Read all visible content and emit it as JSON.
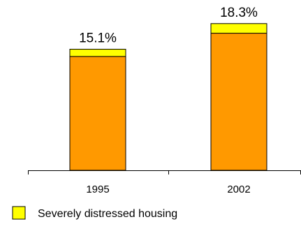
{
  "chart_data": {
    "type": "bar",
    "stacked": true,
    "categories": [
      "1995",
      "2002"
    ],
    "series": [
      {
        "name": "",
        "values": [
          14.2,
          17.1
        ],
        "color": "#FF9900"
      },
      {
        "name": "Severely distressed housing",
        "values": [
          0.9,
          1.2
        ],
        "color": "#FFFF00"
      }
    ],
    "data_labels": [
      "15.1%",
      "18.3%"
    ],
    "ylim": [
      0,
      19.5
    ],
    "grid": false,
    "legend_position": "bottom-left",
    "title": "",
    "xlabel": "",
    "ylabel": ""
  }
}
